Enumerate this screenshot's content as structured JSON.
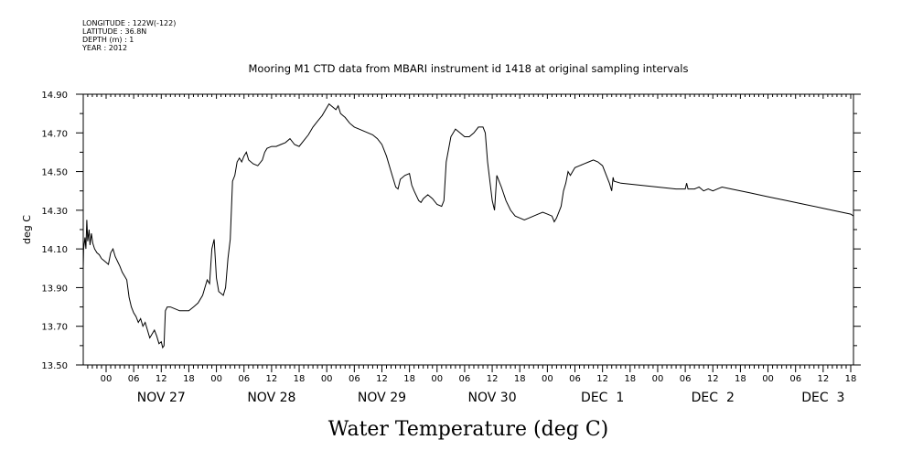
{
  "metadata": {
    "longitude": "LONGITUDE : 122W(-122)",
    "latitude": "LATITUDE : 36.8N",
    "depth": "DEPTH (m) : 1",
    "year": "YEAR : 2012"
  },
  "chart_data": {
    "type": "line",
    "title": "Mooring M1 CTD data from MBARI instrument id 1418 at original sampling intervals",
    "xlabel": "Water Temperature (deg C)",
    "ylabel": "deg C",
    "ylim": [
      13.5,
      14.9
    ],
    "y_ticks": [
      "13.50",
      "13.70",
      "13.90",
      "14.10",
      "14.30",
      "14.50",
      "14.70",
      "14.90"
    ],
    "x_hour_ticks": [
      "00",
      "06",
      "12",
      "18",
      "00",
      "06",
      "12",
      "18",
      "00",
      "06",
      "12",
      "18",
      "00",
      "06",
      "12",
      "18",
      "00",
      "06",
      "12",
      "18",
      "00",
      "06",
      "12",
      "18",
      "00",
      "06",
      "12",
      "18"
    ],
    "x_day_labels": [
      "NOV 27",
      "NOV 28",
      "NOV 29",
      "NOV 30",
      "DEC  1",
      "DEC  2",
      "DEC  3"
    ],
    "x_units": "hours since NOV 27 00:00",
    "xlim": [
      -5.5,
      167.5
    ],
    "grid": false,
    "series": [
      {
        "values": [
          [
            -5.5,
            14.02
          ],
          [
            -5.2,
            14.0
          ],
          [
            -4.9,
            14.1
          ],
          [
            -4.6,
            14.16
          ],
          [
            -4.4,
            14.1
          ],
          [
            -4.2,
            14.25
          ],
          [
            -4.0,
            14.14
          ],
          [
            -3.7,
            14.2
          ],
          [
            -3.5,
            14.12
          ],
          [
            -3.2,
            14.18
          ],
          [
            -2.9,
            14.13
          ],
          [
            -2.5,
            14.1
          ],
          [
            -2.0,
            14.08
          ],
          [
            -1.5,
            14.07
          ],
          [
            -1.0,
            14.05
          ],
          [
            -0.5,
            14.04
          ],
          [
            0,
            14.03
          ],
          [
            0.5,
            14.02
          ],
          [
            1.0,
            14.08
          ],
          [
            1.5,
            14.1
          ],
          [
            2.0,
            14.06
          ],
          [
            3.0,
            14.01
          ],
          [
            3.5,
            13.98
          ],
          [
            4.0,
            13.96
          ],
          [
            4.5,
            13.94
          ],
          [
            5.0,
            13.85
          ],
          [
            5.5,
            13.8
          ],
          [
            6.0,
            13.77
          ],
          [
            6.5,
            13.75
          ],
          [
            7.0,
            13.72
          ],
          [
            7.5,
            13.74
          ],
          [
            8.0,
            13.7
          ],
          [
            8.5,
            13.72
          ],
          [
            9.0,
            13.68
          ],
          [
            9.5,
            13.64
          ],
          [
            10.0,
            13.66
          ],
          [
            10.5,
            13.68
          ],
          [
            11.0,
            13.65
          ],
          [
            11.5,
            13.61
          ],
          [
            12.0,
            13.62
          ],
          [
            12.3,
            13.59
          ],
          [
            12.6,
            13.6
          ],
          [
            12.9,
            13.78
          ],
          [
            13.3,
            13.8
          ],
          [
            14.0,
            13.8
          ],
          [
            15.0,
            13.79
          ],
          [
            16.0,
            13.78
          ],
          [
            17.0,
            13.78
          ],
          [
            18.0,
            13.78
          ],
          [
            19.0,
            13.8
          ],
          [
            20.0,
            13.82
          ],
          [
            21.0,
            13.86
          ],
          [
            21.5,
            13.9
          ],
          [
            22.0,
            13.94
          ],
          [
            22.5,
            13.92
          ],
          [
            23.0,
            14.1
          ],
          [
            23.5,
            14.15
          ],
          [
            24.0,
            13.95
          ],
          [
            24.5,
            13.88
          ],
          [
            25.0,
            13.87
          ],
          [
            25.5,
            13.86
          ],
          [
            26.0,
            13.9
          ],
          [
            26.5,
            14.05
          ],
          [
            27.0,
            14.15
          ],
          [
            27.5,
            14.45
          ],
          [
            28.0,
            14.48
          ],
          [
            28.5,
            14.55
          ],
          [
            29.0,
            14.57
          ],
          [
            29.5,
            14.55
          ],
          [
            30.0,
            14.58
          ],
          [
            30.5,
            14.6
          ],
          [
            31.0,
            14.56
          ],
          [
            32.0,
            14.54
          ],
          [
            33.0,
            14.53
          ],
          [
            34.0,
            14.56
          ],
          [
            34.5,
            14.6
          ],
          [
            35.0,
            14.62
          ],
          [
            36.0,
            14.63
          ],
          [
            37.0,
            14.63
          ],
          [
            38.0,
            14.64
          ],
          [
            39.0,
            14.65
          ],
          [
            40.0,
            14.67
          ],
          [
            41.0,
            14.64
          ],
          [
            42.0,
            14.63
          ],
          [
            43.0,
            14.66
          ],
          [
            44.0,
            14.69
          ],
          [
            45.0,
            14.73
          ],
          [
            46.0,
            14.76
          ],
          [
            47.0,
            14.79
          ],
          [
            48.0,
            14.83
          ],
          [
            48.5,
            14.85
          ],
          [
            49.0,
            14.84
          ],
          [
            50.0,
            14.82
          ],
          [
            50.5,
            14.84
          ],
          [
            51.0,
            14.8
          ],
          [
            52.0,
            14.78
          ],
          [
            53.0,
            14.75
          ],
          [
            54.0,
            14.73
          ],
          [
            55.0,
            14.72
          ],
          [
            56.0,
            14.71
          ],
          [
            57.0,
            14.7
          ],
          [
            58.0,
            14.69
          ],
          [
            59.0,
            14.67
          ],
          [
            60.0,
            14.64
          ],
          [
            61.0,
            14.58
          ],
          [
            62.0,
            14.5
          ],
          [
            63.0,
            14.42
          ],
          [
            63.5,
            14.41
          ],
          [
            64.0,
            14.46
          ],
          [
            65.0,
            14.48
          ],
          [
            66.0,
            14.49
          ],
          [
            66.5,
            14.43
          ],
          [
            67.0,
            14.4
          ],
          [
            68.0,
            14.35
          ],
          [
            68.5,
            14.34
          ],
          [
            69.0,
            14.36
          ],
          [
            70.0,
            14.38
          ],
          [
            71.0,
            14.36
          ],
          [
            72.0,
            14.33
          ],
          [
            73.0,
            14.32
          ],
          [
            73.5,
            14.35
          ],
          [
            74.0,
            14.55
          ],
          [
            75.0,
            14.68
          ],
          [
            76.0,
            14.72
          ],
          [
            77.0,
            14.7
          ],
          [
            78.0,
            14.68
          ],
          [
            79.0,
            14.68
          ],
          [
            80.0,
            14.7
          ],
          [
            81.0,
            14.73
          ],
          [
            82.0,
            14.73
          ],
          [
            82.5,
            14.7
          ],
          [
            83.0,
            14.55
          ],
          [
            84.0,
            14.35
          ],
          [
            84.5,
            14.3
          ],
          [
            85.0,
            14.48
          ],
          [
            86.0,
            14.42
          ],
          [
            87.0,
            14.35
          ],
          [
            88.0,
            14.3
          ],
          [
            89.0,
            14.27
          ],
          [
            90.0,
            14.26
          ],
          [
            91.0,
            14.25
          ],
          [
            92.0,
            14.26
          ],
          [
            93.0,
            14.27
          ],
          [
            94.0,
            14.28
          ],
          [
            95.0,
            14.29
          ],
          [
            96.0,
            14.28
          ],
          [
            97.0,
            14.27
          ],
          [
            97.5,
            14.24
          ],
          [
            98.0,
            14.26
          ],
          [
            99.0,
            14.32
          ],
          [
            99.5,
            14.4
          ],
          [
            100.0,
            14.44
          ],
          [
            100.5,
            14.5
          ],
          [
            101.0,
            14.48
          ],
          [
            102.0,
            14.52
          ],
          [
            103.0,
            14.53
          ],
          [
            104.0,
            14.54
          ],
          [
            105.0,
            14.55
          ],
          [
            106.0,
            14.56
          ],
          [
            107.0,
            14.55
          ],
          [
            108.0,
            14.53
          ],
          [
            108.5,
            14.5
          ],
          [
            109.0,
            14.47
          ],
          [
            109.5,
            14.44
          ],
          [
            110.0,
            14.4
          ],
          [
            110.3,
            14.47
          ],
          [
            110.5,
            14.45
          ],
          [
            112.0,
            14.44
          ],
          [
            116.0,
            14.43
          ],
          [
            120.0,
            14.42
          ],
          [
            124.0,
            14.41
          ],
          [
            126.0,
            14.41
          ],
          [
            126.3,
            14.44
          ],
          [
            126.6,
            14.41
          ],
          [
            128.0,
            14.41
          ],
          [
            129.0,
            14.42
          ],
          [
            130.0,
            14.4
          ],
          [
            131.0,
            14.41
          ],
          [
            132.0,
            14.4
          ],
          [
            133.0,
            14.41
          ],
          [
            134.0,
            14.42
          ],
          [
            136.0,
            14.41
          ],
          [
            140.0,
            14.39
          ],
          [
            144.0,
            14.37
          ],
          [
            148.0,
            14.35
          ],
          [
            152.0,
            14.33
          ],
          [
            156.0,
            14.31
          ],
          [
            160.0,
            14.29
          ],
          [
            162.0,
            14.28
          ],
          [
            163.0,
            14.27
          ],
          [
            163.5,
            14.28
          ],
          [
            164.0,
            14.26
          ],
          [
            164.5,
            14.28
          ],
          [
            165.0,
            14.29
          ],
          [
            165.5,
            14.31
          ],
          [
            166.0,
            14.33
          ]
        ]
      }
    ]
  }
}
